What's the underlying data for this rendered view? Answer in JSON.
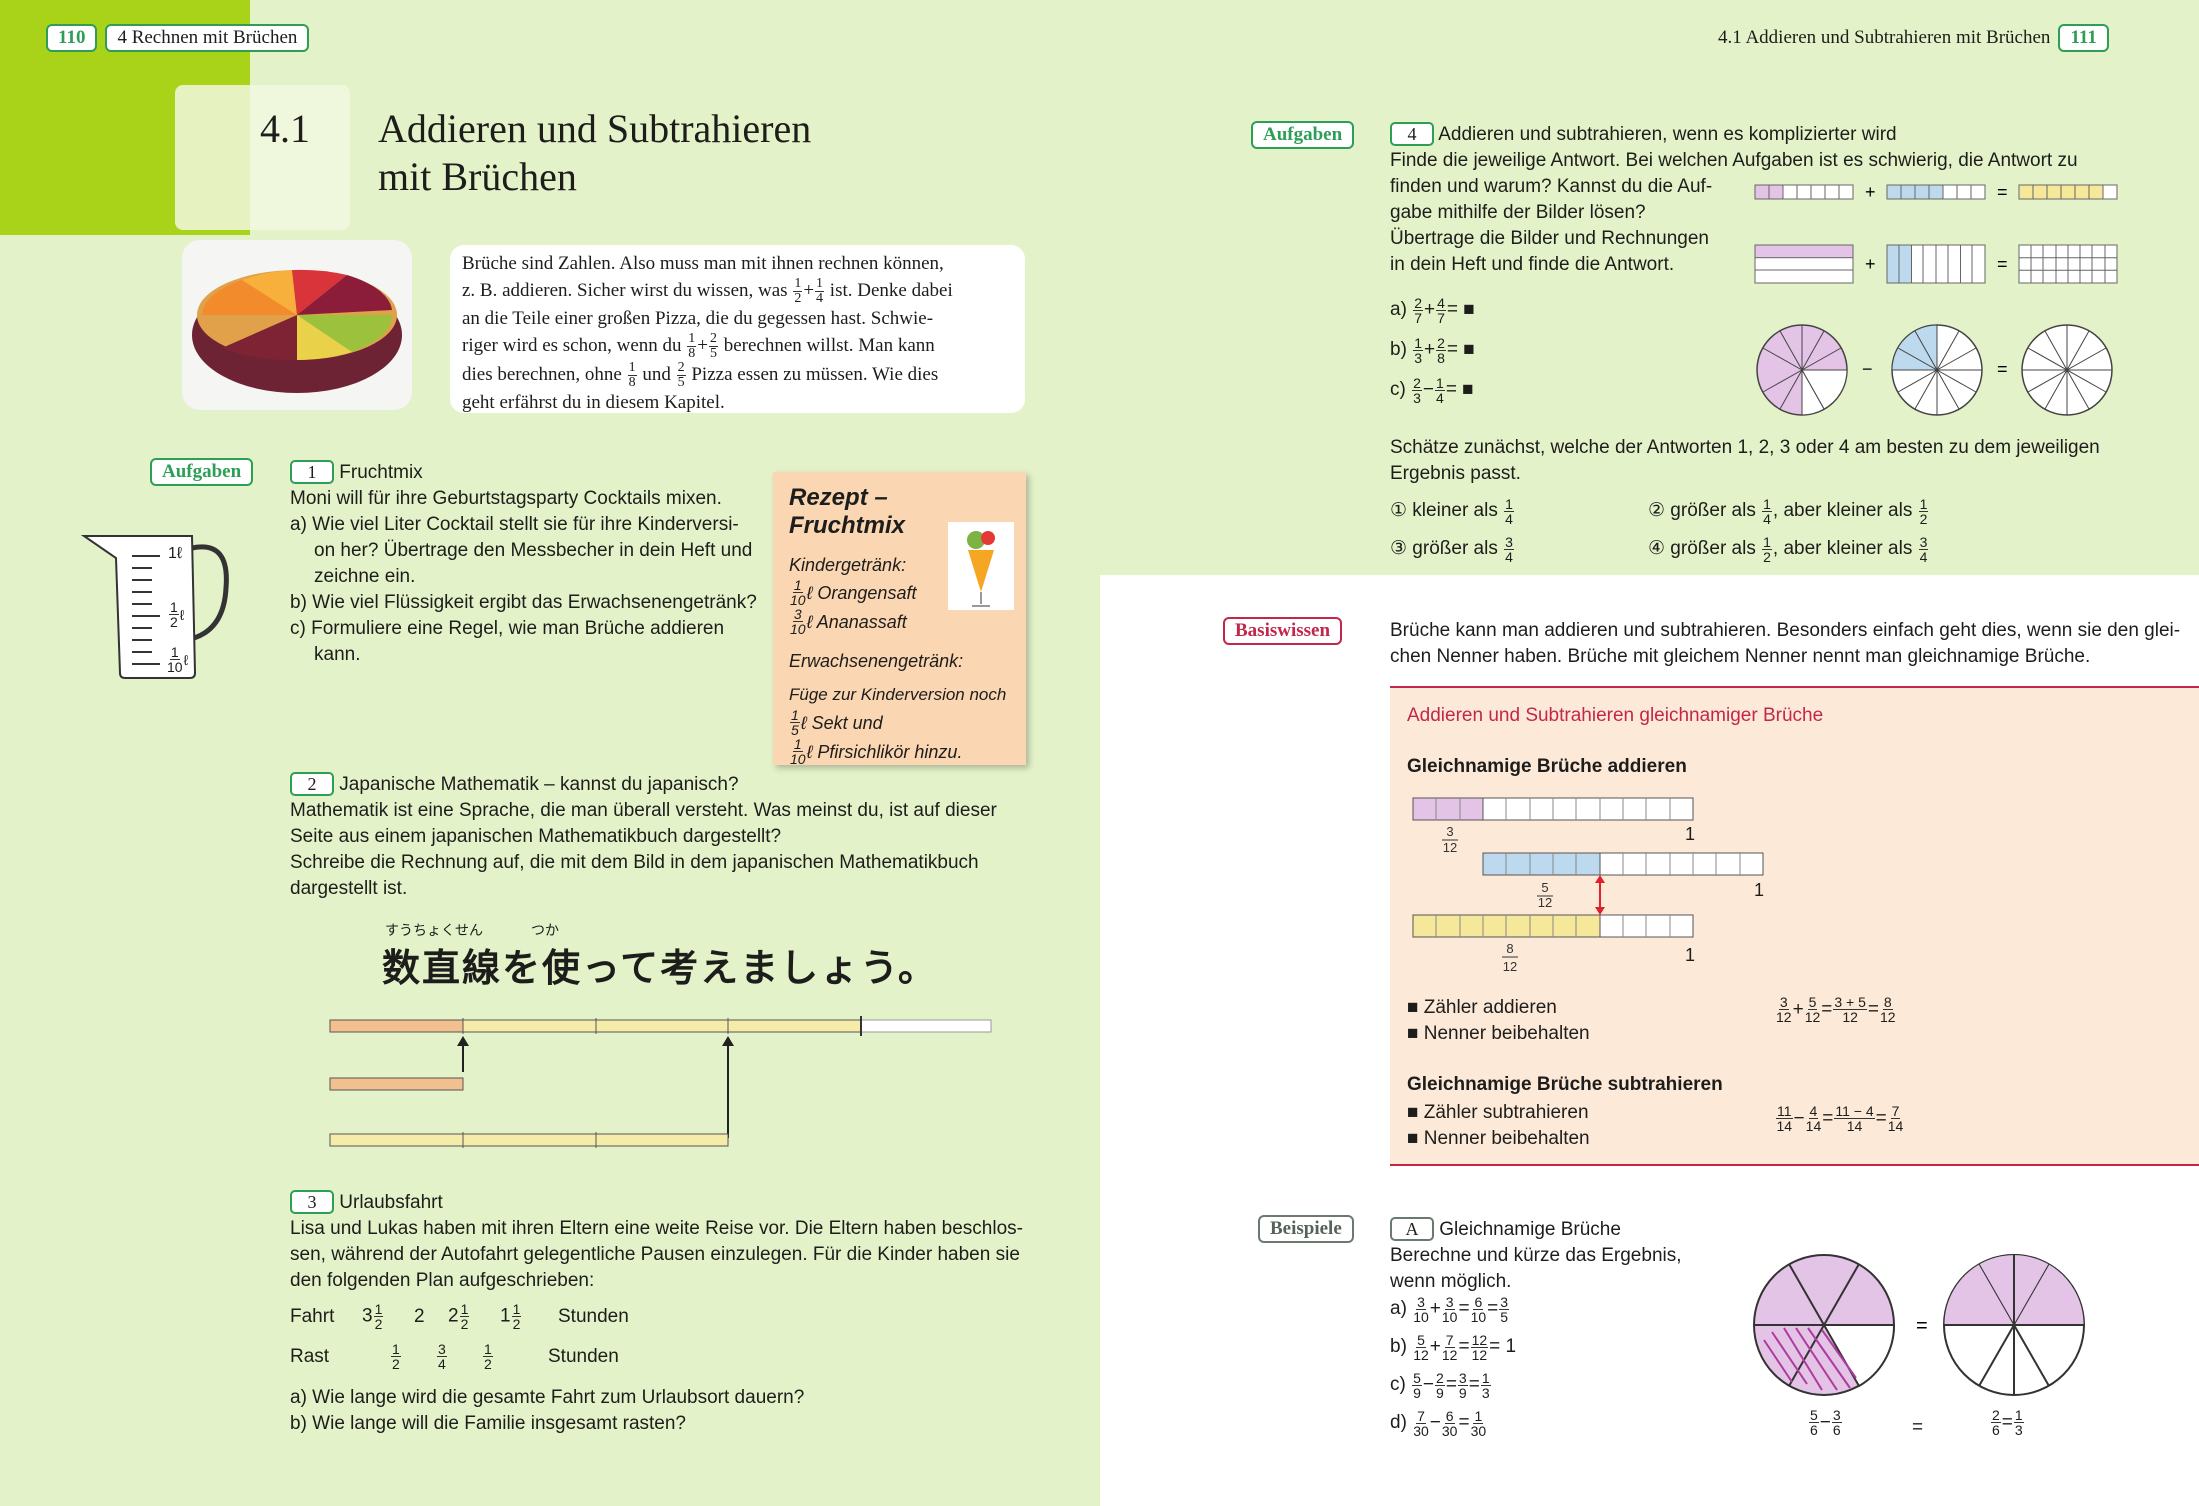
{
  "left_page": {
    "page_number": "110",
    "chapter": "4  Rechnen mit Brüchen",
    "section_number": "4.1",
    "section_title_line1": "Addieren und Subtrahieren",
    "section_title_line2": "mit Brüchen",
    "intro": {
      "l1": "Brüche sind Zahlen. Also muss man mit ihnen rechnen können,",
      "l2a": "z. B. addieren. Sicher wirst du wissen, was",
      "l2b": "ist. Denke dabei",
      "l3": "an die Teile einer großen Pizza, die du gegessen hast. Schwie-",
      "l4a": "riger wird es schon, wenn du",
      "l4b": "berechnen willst. Man kann",
      "l5a": "dies berechnen, ohne",
      "l5b": "und",
      "l5c": "Pizza essen zu müssen. Wie dies",
      "l6": "geht erfährst du in diesem Kapitel."
    },
    "aufgaben_tag": "Aufgaben",
    "task1": {
      "num": "1",
      "title": "Fruchtmix",
      "lead": "Moni will für ihre Geburtstagsparty Cocktails mixen.",
      "a1": "a) Wie viel Liter Cocktail stellt sie für ihre Kinderversi-",
      "a2": "on her? Übertrage den Messbecher in dein Heft und",
      "a3": "zeichne ein.",
      "b": "b) Wie viel Flüssigkeit ergibt das Erwachsenengetränk?",
      "c1": "c) Formuliere eine Regel, wie man Brüche addieren",
      "c2": "kann."
    },
    "beaker_labels": {
      "top": "1ℓ",
      "mid": "ℓ",
      "low": "ℓ"
    },
    "recipe": {
      "title": "Rezept – Fruchtmix",
      "kinder": "Kindergetränk:",
      "k1": "ℓ Orangensaft",
      "k2": "ℓ Ananassaft",
      "erw": "Erwachsenengetränk:",
      "e0": "Füge zur Kinderversion noch",
      "e1": "ℓ Sekt und",
      "e2": "ℓ Pfirsichlikör hinzu."
    },
    "task2": {
      "num": "2",
      "title": "Japanische Mathematik – kannst du japanisch?",
      "l1": "Mathematik ist eine Sprache, die man überall versteht. Was meinst du, ist auf dieser",
      "l2": "Seite aus einem japanischen Mathematikbuch dargestellt?",
      "l3": "Schreibe die Rechnung auf, die mit dem Bild in dem japanischen Mathematikbuch",
      "l4": "dargestellt ist.",
      "ruby1": "すうちょくせん",
      "ruby2": "つか",
      "japanese": "数直線を使って考えましょう。"
    },
    "task3": {
      "num": "3",
      "title": "Urlaubsfahrt",
      "l1": "Lisa und Lukas haben mit ihren Eltern eine weite Reise vor. Die Eltern haben beschlos-",
      "l2": "sen, während der Autofahrt gelegentliche Pausen einzulegen. Für die Kinder haben sie",
      "l3": "den folgenden Plan aufgeschrieben:",
      "row1_label": "Fahrt",
      "row2_label": "Rast",
      "unit": "Stunden",
      "a": "a) Wie lange wird die gesamte Fahrt zum Urlaubsort dauern?",
      "b": "b) Wie lange will die Familie insgesamt rasten?"
    }
  },
  "right_page": {
    "page_number": "111",
    "header": "4.1  Addieren und Subtrahieren mit Brüchen",
    "aufgaben_tag": "Aufgaben",
    "task4": {
      "num": "4",
      "title": "Addieren und subtrahieren, wenn es komplizierter wird",
      "l1": "Finde die jeweilige Antwort. Bei welchen Aufgaben ist es schwierig, die Antwort zu",
      "l2": "finden und warum? Kannst du die Auf-",
      "l3": "gabe mithilfe der Bilder lösen?",
      "l4": "Übertrage die Bilder und Rechnungen",
      "l5": "in dein Heft und finde die Antwort.",
      "a": "a)",
      "b": "b)",
      "c": "c)",
      "estimate1": "Schätze zunächst, welche der Antworten 1, 2, 3 oder 4 am besten zu dem jeweiligen",
      "estimate2": "Ergebnis passt.",
      "opt1": "① kleiner als",
      "opt2a": "② größer als",
      "opt2b": ", aber kleiner als",
      "opt3": "③ größer als",
      "opt4a": "④ größer als",
      "opt4b": ", aber kleiner als"
    },
    "basis_tag": "Basiswissen",
    "basis_text1": "Brüche kann man addieren und subtrahieren. Besonders einfach geht dies, wenn sie den glei-",
    "basis_text2": "chen Nenner haben. Brüche mit gleichem Nenner nennt man gleichnamige Brüche.",
    "box": {
      "heading": "Addieren und Subtrahieren gleichnamiger Brüche",
      "add_title": "Gleichnamige Brüche addieren",
      "one": "1",
      "add_b1": "■ Zähler addieren",
      "add_b2": "■ Nenner beibehalten",
      "sub_title": "Gleichnamige Brüche subtrahieren",
      "sub_b1": "■ Zähler subtrahieren",
      "sub_b2": "■ Nenner beibehalten"
    },
    "beispiele_tag": "Beispiele",
    "exampleA": {
      "num": "A",
      "title": "Gleichnamige Brüche",
      "l1": "Berechne und kürze das Ergebnis,",
      "l2": "wenn möglich.",
      "a": "a)",
      "b": "b)",
      "c": "c)",
      "d": "d)"
    }
  },
  "colors": {
    "green": "#2e9e57",
    "red": "#c2274a",
    "page_bg": "#e4f2c9",
    "box_bg": "#fde9d8"
  }
}
